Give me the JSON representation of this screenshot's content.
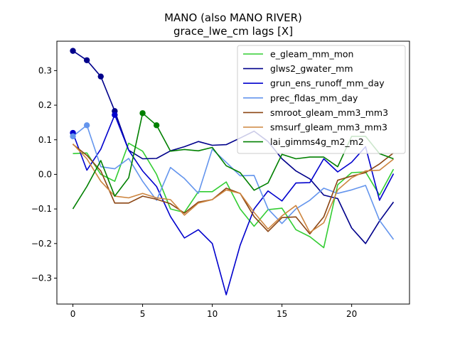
{
  "chart_data": {
    "type": "line",
    "title": "MANO (also MANO RIVER)",
    "subtitle": "grace_lwe_cm lags [X]",
    "xlim": [
      -1.15,
      24.15
    ],
    "ylim": [
      -0.375,
      0.385
    ],
    "xticks": [
      0,
      5,
      10,
      15,
      20
    ],
    "yticks": [
      -0.3,
      -0.2,
      -0.1,
      0.0,
      0.1,
      0.2,
      0.3
    ],
    "ytick_labels": [
      "−0.3",
      "−0.2",
      "−0.1",
      "0.0",
      "0.1",
      "0.2",
      "0.3"
    ],
    "legend_position": "top-right",
    "x": [
      0,
      1,
      2,
      3,
      4,
      5,
      6,
      7,
      8,
      9,
      10,
      11,
      12,
      13,
      14,
      15,
      16,
      17,
      18,
      19,
      20,
      21,
      22,
      23
    ],
    "series": [
      {
        "name": "e_gleam_mm_mon",
        "color": "#32cd32",
        "values": [
          0.06,
          0.062,
          0.0,
          -0.02,
          0.09,
          0.067,
          0.0,
          -0.1,
          -0.11,
          -0.05,
          -0.05,
          -0.022,
          -0.1,
          -0.15,
          -0.102,
          -0.098,
          -0.16,
          -0.18,
          -0.212,
          -0.03,
          0.005,
          0.007,
          -0.06,
          0.015
        ],
        "markers": []
      },
      {
        "name": "glws2_gwater_mm",
        "color": "#00008b",
        "values": [
          0.357,
          0.33,
          0.283,
          0.183,
          0.07,
          0.045,
          0.046,
          0.068,
          0.08,
          0.095,
          0.084,
          0.086,
          0.105,
          0.125,
          0.095,
          0.045,
          0.01,
          -0.013,
          -0.06,
          -0.07,
          -0.155,
          -0.2,
          -0.135,
          -0.08
        ],
        "markers": [
          0,
          1,
          2,
          3
        ]
      },
      {
        "name": "grun_ens_runoff_mm_day",
        "color": "#0000cd",
        "values": [
          0.12,
          0.012,
          0.073,
          0.172,
          0.07,
          0.01,
          -0.035,
          -0.122,
          -0.184,
          -0.16,
          -0.2,
          -0.348,
          -0.205,
          -0.1,
          -0.048,
          -0.077,
          -0.025,
          -0.024,
          0.045,
          0.007,
          0.035,
          0.08,
          -0.075,
          0.002
        ],
        "markers": [
          0,
          3
        ]
      },
      {
        "name": "prec_fldas_mm_day",
        "color": "#6495ed",
        "values": [
          0.11,
          0.142,
          0.022,
          0.016,
          0.046,
          -0.02,
          -0.075,
          0.02,
          -0.012,
          -0.055,
          0.073,
          0.035,
          -0.004,
          -0.003,
          -0.1,
          -0.142,
          -0.1,
          -0.075,
          -0.04,
          -0.055,
          -0.045,
          -0.032,
          -0.133,
          -0.188
        ],
        "markers": [
          0,
          1
        ]
      },
      {
        "name": "smroot_gleam_mm3_mm3",
        "color": "#8b4513",
        "values": [
          0.087,
          0.055,
          0.01,
          -0.083,
          -0.083,
          -0.063,
          -0.072,
          -0.085,
          -0.112,
          -0.08,
          -0.073,
          -0.04,
          -0.055,
          -0.122,
          -0.165,
          -0.125,
          -0.123,
          -0.172,
          -0.123,
          -0.017,
          -0.005,
          0.005,
          0.03,
          0.062
        ],
        "markers": []
      },
      {
        "name": "smsurf_gleam_mm3_mm3",
        "color": "#cd853f",
        "values": [
          0.088,
          0.045,
          -0.02,
          -0.063,
          -0.068,
          -0.055,
          -0.068,
          -0.073,
          -0.118,
          -0.083,
          -0.073,
          -0.045,
          -0.055,
          -0.11,
          -0.158,
          -0.12,
          -0.09,
          -0.168,
          -0.14,
          -0.045,
          -0.01,
          0.01,
          0.012,
          0.044
        ],
        "markers": []
      },
      {
        "name": "lai_gimms4g_m2_m2",
        "color": "#008000",
        "values": [
          -0.1,
          -0.035,
          0.04,
          -0.063,
          -0.01,
          0.177,
          0.142,
          0.067,
          0.072,
          0.068,
          0.078,
          0.025,
          0.005,
          -0.046,
          -0.025,
          0.058,
          0.045,
          0.05,
          0.05,
          0.022,
          0.11,
          0.11,
          0.06,
          0.045
        ],
        "markers": [
          5,
          6
        ]
      }
    ]
  }
}
